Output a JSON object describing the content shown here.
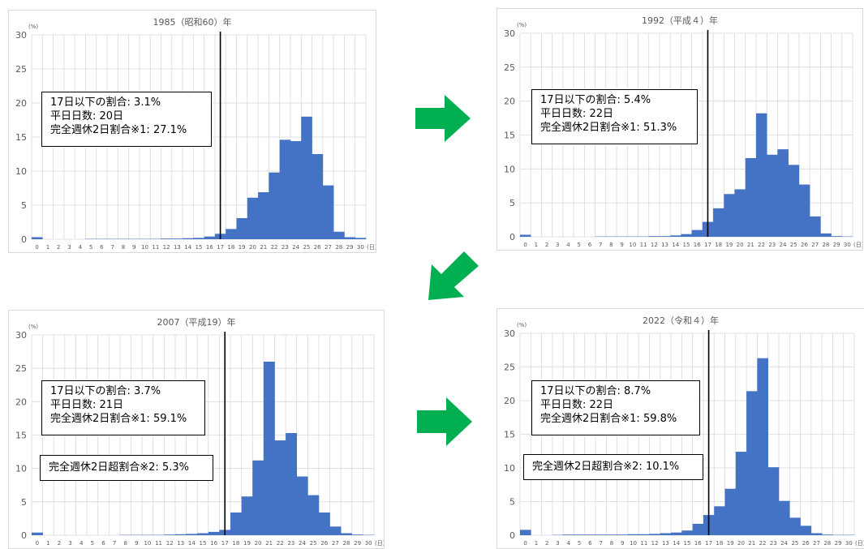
{
  "colors": {
    "bar": "#4472c4",
    "arrow": "#00b050",
    "grid": "#d9d9d9",
    "axis_text": "#595959"
  },
  "chart_data": [
    {
      "type": "bar",
      "title": "1985（昭和60）年",
      "ylabel": "(%)",
      "xlabel": "(日)",
      "ylim": [
        0,
        30
      ],
      "yticks": [
        0,
        5,
        10,
        15,
        20,
        25,
        30
      ],
      "categories": [
        0,
        1,
        2,
        3,
        4,
        5,
        6,
        7,
        8,
        9,
        10,
        11,
        12,
        13,
        14,
        15,
        16,
        17,
        18,
        19,
        20,
        21,
        22,
        23,
        24,
        25,
        26,
        27,
        28,
        29,
        30
      ],
      "values": [
        0.3,
        0,
        0,
        0,
        0,
        0.05,
        0.05,
        0.05,
        0.05,
        0.05,
        0.05,
        0.05,
        0.1,
        0.1,
        0.15,
        0.2,
        0.4,
        0.8,
        1.5,
        3.1,
        6.1,
        6.9,
        9.8,
        14.6,
        14.4,
        18.0,
        12.5,
        7.9,
        1.1,
        0.3,
        0.2
      ],
      "vline_x": 17.5,
      "annotations": [
        "17日以下の割合: 3.1%",
        "平日日数: 20日",
        "完全週休2日割合※1: 27.1%"
      ],
      "annotations2": []
    },
    {
      "type": "bar",
      "title": "1992（平成４）年",
      "ylabel": "(%)",
      "xlabel": "(日)",
      "ylim": [
        0,
        30
      ],
      "yticks": [
        0,
        5,
        10,
        15,
        20,
        25,
        30
      ],
      "categories": [
        0,
        1,
        2,
        3,
        4,
        5,
        6,
        7,
        8,
        9,
        10,
        11,
        12,
        13,
        14,
        15,
        16,
        17,
        18,
        19,
        20,
        21,
        22,
        23,
        24,
        25,
        26,
        27,
        28,
        29,
        30
      ],
      "values": [
        0.3,
        0,
        0,
        0,
        0,
        0,
        0,
        0.05,
        0.05,
        0.05,
        0.05,
        0.05,
        0.1,
        0.1,
        0.2,
        0.4,
        1.0,
        2.2,
        4.2,
        6.3,
        7.0,
        11.6,
        18.2,
        12.1,
        12.9,
        10.6,
        7.7,
        3.0,
        0.5,
        0.1,
        0.05
      ],
      "vline_x": 17.5,
      "annotations": [
        "17日以下の割合: 5.4%",
        "平日日数: 22日",
        "完全週休2日割合※1: 51.3%"
      ],
      "annotations2": []
    },
    {
      "type": "bar",
      "title": "2007（平成19）年",
      "ylabel": "(%)",
      "xlabel": "(日)",
      "ylim": [
        0,
        30
      ],
      "yticks": [
        0,
        5,
        10,
        15,
        20,
        25,
        30
      ],
      "categories": [
        0,
        1,
        2,
        3,
        4,
        5,
        6,
        7,
        8,
        9,
        10,
        11,
        12,
        13,
        14,
        15,
        16,
        17,
        18,
        19,
        20,
        21,
        22,
        23,
        24,
        25,
        26,
        27,
        28,
        29,
        30
      ],
      "values": [
        0.4,
        0,
        0,
        0,
        0,
        0,
        0,
        0,
        0.05,
        0.05,
        0.05,
        0.05,
        0.1,
        0.15,
        0.2,
        0.3,
        0.5,
        0.8,
        3.4,
        5.8,
        11.2,
        26.0,
        14.2,
        15.3,
        8.8,
        6.0,
        3.4,
        1.3,
        0.3,
        0.1,
        0.05
      ],
      "vline_x": 17.5,
      "annotations": [
        "17日以下の割合: 3.7%",
        "平日日数: 21日",
        "完全週休2日割合※1: 59.1%"
      ],
      "annotations2": [
        "完全週休2日超割合※2: 5.3%"
      ]
    },
    {
      "type": "bar",
      "title": "2022（令和４）年",
      "ylabel": "(%)",
      "xlabel": "(日)",
      "ylim": [
        0,
        30
      ],
      "yticks": [
        0,
        5,
        10,
        15,
        20,
        25,
        30
      ],
      "categories": [
        0,
        1,
        2,
        3,
        4,
        5,
        6,
        7,
        8,
        9,
        10,
        11,
        12,
        13,
        14,
        15,
        16,
        17,
        18,
        19,
        20,
        21,
        22,
        23,
        24,
        25,
        26,
        27,
        28,
        29,
        30
      ],
      "values": [
        0.8,
        0,
        0,
        0.05,
        0.1,
        0.1,
        0.1,
        0.1,
        0.1,
        0.1,
        0.15,
        0.15,
        0.2,
        0.3,
        0.4,
        0.7,
        1.7,
        3.0,
        4.3,
        6.9,
        12.4,
        21.4,
        26.3,
        10.1,
        5.1,
        2.6,
        1.4,
        0.3,
        0.1,
        0.05,
        0.05
      ],
      "vline_x": 17.5,
      "annotations": [
        "17日以下の割合: 8.7%",
        "平日日数: 22日",
        "完全週休2日割合※1: 59.8%"
      ],
      "annotations2": [
        "完全週休2日超割合※2: 10.1%"
      ]
    }
  ],
  "arrows": [
    "right-arrow",
    "down-left-arrow",
    "right-arrow"
  ]
}
